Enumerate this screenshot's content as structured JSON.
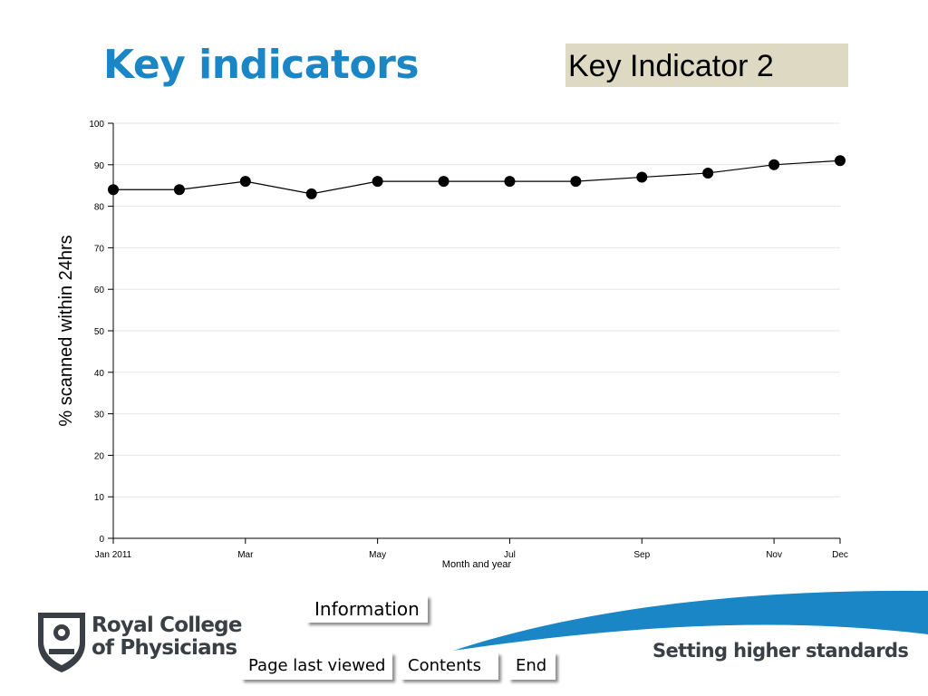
{
  "slide": {
    "title": "Key indicators",
    "badge": "Key Indicator 2"
  },
  "nav": {
    "information": "Information",
    "page_last_viewed": "Page last viewed",
    "contents": "Contents",
    "end": "End"
  },
  "footer": {
    "logo_line1": "Royal College",
    "logo_line2": "of Physicians",
    "tagline": "Setting higher standards"
  },
  "colors": {
    "title": "#1a86c5",
    "badge_bg": "#ddd9c3",
    "swoosh": "#1a86c5",
    "logo": "#3a3f45"
  },
  "chart_data": {
    "type": "line",
    "xlabel": "Month and year",
    "ylabel": "% scanned within 24hrs",
    "x": [
      "Jan 2011",
      "Feb",
      "Mar",
      "Apr",
      "May",
      "Jun",
      "Jul",
      "Aug",
      "Sep",
      "Oct",
      "Nov",
      "Dec"
    ],
    "tick_labels": [
      "Jan 2011",
      "Mar",
      "May",
      "Jul",
      "Sep",
      "Nov",
      "Dec"
    ],
    "values": [
      84,
      84,
      86,
      83,
      86,
      86,
      86,
      86,
      87,
      88,
      90,
      91
    ],
    "ylim": [
      0,
      100
    ],
    "yticks": [
      0,
      10,
      20,
      30,
      40,
      50,
      60,
      70,
      80,
      90,
      100
    ],
    "grid": true,
    "color": "#000000"
  }
}
